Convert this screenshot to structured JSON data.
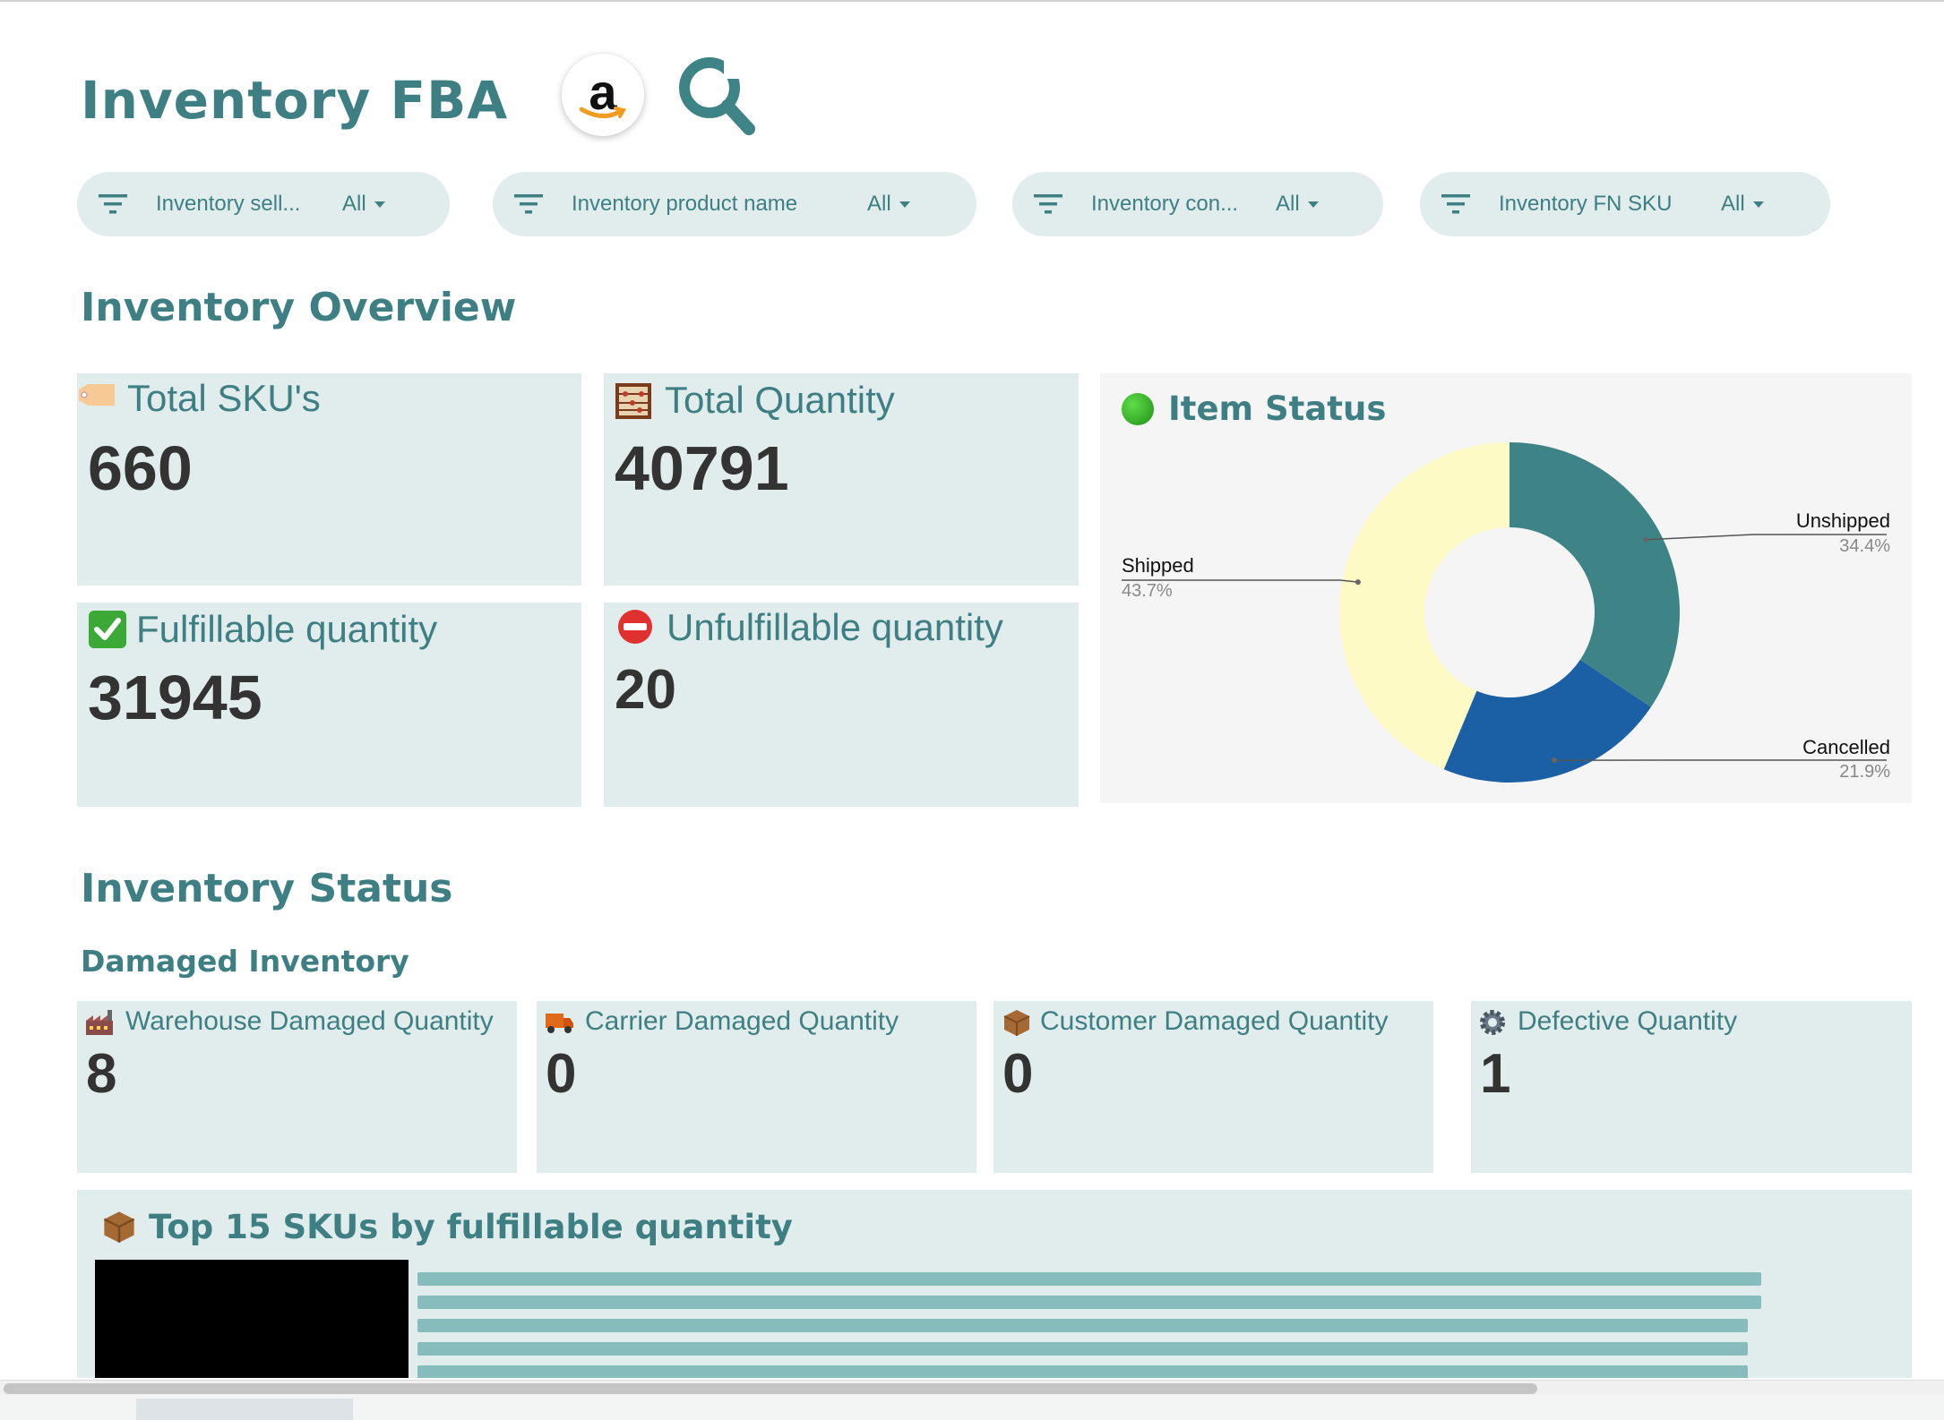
{
  "header": {
    "title": "Inventory FBA",
    "amazon_logo_letter": "a"
  },
  "filters": [
    {
      "label": "Inventory sell...",
      "value": "All"
    },
    {
      "label": "Inventory product name",
      "value": "All"
    },
    {
      "label": "Inventory con...",
      "value": "All"
    },
    {
      "label": "Inventory FN SKU",
      "value": "All"
    }
  ],
  "overview": {
    "title": "Inventory Overview",
    "total_skus": {
      "label": "Total SKU's",
      "value": "660",
      "icon": "tag-icon"
    },
    "total_quantity": {
      "label": "Total Quantity",
      "value": "40791",
      "icon": "abacus-icon"
    },
    "fulfillable": {
      "label": "Fulfillable quantity",
      "value": "31945",
      "icon": "check-icon"
    },
    "unfulfillable": {
      "label": "Unfulfillable quantity",
      "value": "20",
      "icon": "no-entry-icon"
    }
  },
  "item_status": {
    "title": "Item Status",
    "icon": "green-circle-icon",
    "labels": [
      {
        "name": "Shipped",
        "pct": "43.7%"
      },
      {
        "name": "Unshipped",
        "pct": "34.4%"
      },
      {
        "name": "Cancelled",
        "pct": "21.9%"
      }
    ]
  },
  "chart_data": [
    {
      "type": "pie",
      "title": "Item Status",
      "categories": [
        "Unshipped",
        "Cancelled",
        "Shipped"
      ],
      "values": [
        34.4,
        21.9,
        43.7
      ],
      "colors": [
        "#3e8385",
        "#1b5fa4",
        "#fdfac6"
      ]
    },
    {
      "type": "bar",
      "title": "Top 15 SKUs by fulfillable quantity",
      "values": [
        100,
        100,
        99,
        99,
        99
      ]
    }
  ],
  "status": {
    "title": "Inventory Status",
    "subtitle": "Damaged Inventory",
    "cards": [
      {
        "label": "Warehouse Damaged Quantity",
        "value": "8",
        "icon": "factory-icon"
      },
      {
        "label": "Carrier Damaged Quantity",
        "value": "0",
        "icon": "truck-icon"
      },
      {
        "label": "Customer Damaged Quantity",
        "value": "0",
        "icon": "package-icon"
      },
      {
        "label": "Defective Quantity",
        "value": "1",
        "icon": "gear-icon"
      }
    ]
  },
  "top_skus": {
    "title": "Top 15 SKUs by fulfillable quantity",
    "icon": "package-icon"
  },
  "colors": {
    "accent": "#3e7f84",
    "card_bg": "#e1ecec",
    "bar": "#86bcbc"
  }
}
